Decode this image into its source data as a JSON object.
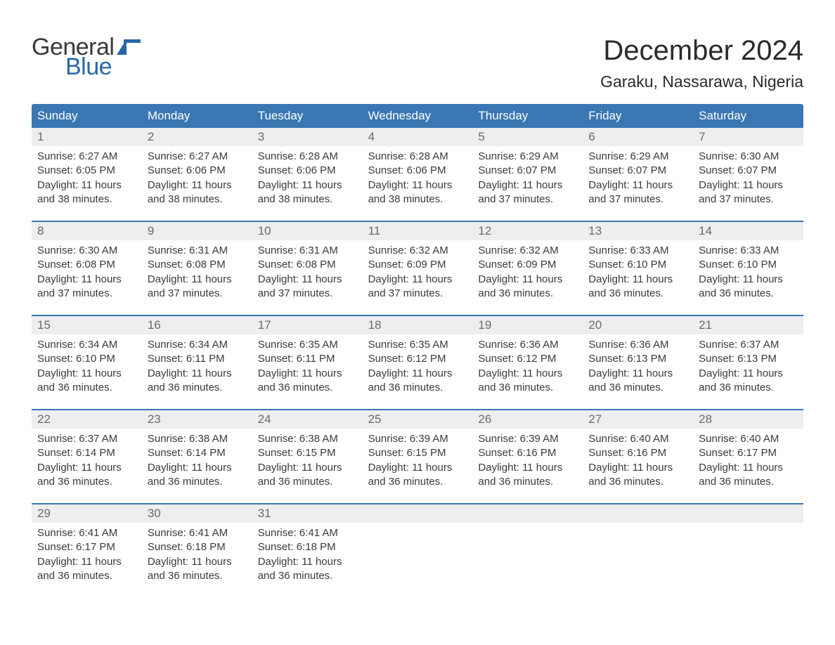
{
  "logo": {
    "text1": "General",
    "text2": "Blue",
    "flag_color": "#2968a8"
  },
  "title": "December 2024",
  "location": "Garaku, Nassarawa, Nigeria",
  "header_bg": "#3a77b3",
  "header_fg": "#ffffff",
  "daynum_bg": "#eceeef",
  "daynum_fg": "#6a6a6a",
  "text_color": "#3a3a3a",
  "border_color": "#3a77b3",
  "days": [
    "Sunday",
    "Monday",
    "Tuesday",
    "Wednesday",
    "Thursday",
    "Friday",
    "Saturday"
  ],
  "weeks": [
    [
      {
        "n": "1",
        "sunrise": "6:27 AM",
        "sunset": "6:05 PM",
        "daylight": "11 hours and 38 minutes."
      },
      {
        "n": "2",
        "sunrise": "6:27 AM",
        "sunset": "6:06 PM",
        "daylight": "11 hours and 38 minutes."
      },
      {
        "n": "3",
        "sunrise": "6:28 AM",
        "sunset": "6:06 PM",
        "daylight": "11 hours and 38 minutes."
      },
      {
        "n": "4",
        "sunrise": "6:28 AM",
        "sunset": "6:06 PM",
        "daylight": "11 hours and 38 minutes."
      },
      {
        "n": "5",
        "sunrise": "6:29 AM",
        "sunset": "6:07 PM",
        "daylight": "11 hours and 37 minutes."
      },
      {
        "n": "6",
        "sunrise": "6:29 AM",
        "sunset": "6:07 PM",
        "daylight": "11 hours and 37 minutes."
      },
      {
        "n": "7",
        "sunrise": "6:30 AM",
        "sunset": "6:07 PM",
        "daylight": "11 hours and 37 minutes."
      }
    ],
    [
      {
        "n": "8",
        "sunrise": "6:30 AM",
        "sunset": "6:08 PM",
        "daylight": "11 hours and 37 minutes."
      },
      {
        "n": "9",
        "sunrise": "6:31 AM",
        "sunset": "6:08 PM",
        "daylight": "11 hours and 37 minutes."
      },
      {
        "n": "10",
        "sunrise": "6:31 AM",
        "sunset": "6:08 PM",
        "daylight": "11 hours and 37 minutes."
      },
      {
        "n": "11",
        "sunrise": "6:32 AM",
        "sunset": "6:09 PM",
        "daylight": "11 hours and 37 minutes."
      },
      {
        "n": "12",
        "sunrise": "6:32 AM",
        "sunset": "6:09 PM",
        "daylight": "11 hours and 36 minutes."
      },
      {
        "n": "13",
        "sunrise": "6:33 AM",
        "sunset": "6:10 PM",
        "daylight": "11 hours and 36 minutes."
      },
      {
        "n": "14",
        "sunrise": "6:33 AM",
        "sunset": "6:10 PM",
        "daylight": "11 hours and 36 minutes."
      }
    ],
    [
      {
        "n": "15",
        "sunrise": "6:34 AM",
        "sunset": "6:10 PM",
        "daylight": "11 hours and 36 minutes."
      },
      {
        "n": "16",
        "sunrise": "6:34 AM",
        "sunset": "6:11 PM",
        "daylight": "11 hours and 36 minutes."
      },
      {
        "n": "17",
        "sunrise": "6:35 AM",
        "sunset": "6:11 PM",
        "daylight": "11 hours and 36 minutes."
      },
      {
        "n": "18",
        "sunrise": "6:35 AM",
        "sunset": "6:12 PM",
        "daylight": "11 hours and 36 minutes."
      },
      {
        "n": "19",
        "sunrise": "6:36 AM",
        "sunset": "6:12 PM",
        "daylight": "11 hours and 36 minutes."
      },
      {
        "n": "20",
        "sunrise": "6:36 AM",
        "sunset": "6:13 PM",
        "daylight": "11 hours and 36 minutes."
      },
      {
        "n": "21",
        "sunrise": "6:37 AM",
        "sunset": "6:13 PM",
        "daylight": "11 hours and 36 minutes."
      }
    ],
    [
      {
        "n": "22",
        "sunrise": "6:37 AM",
        "sunset": "6:14 PM",
        "daylight": "11 hours and 36 minutes."
      },
      {
        "n": "23",
        "sunrise": "6:38 AM",
        "sunset": "6:14 PM",
        "daylight": "11 hours and 36 minutes."
      },
      {
        "n": "24",
        "sunrise": "6:38 AM",
        "sunset": "6:15 PM",
        "daylight": "11 hours and 36 minutes."
      },
      {
        "n": "25",
        "sunrise": "6:39 AM",
        "sunset": "6:15 PM",
        "daylight": "11 hours and 36 minutes."
      },
      {
        "n": "26",
        "sunrise": "6:39 AM",
        "sunset": "6:16 PM",
        "daylight": "11 hours and 36 minutes."
      },
      {
        "n": "27",
        "sunrise": "6:40 AM",
        "sunset": "6:16 PM",
        "daylight": "11 hours and 36 minutes."
      },
      {
        "n": "28",
        "sunrise": "6:40 AM",
        "sunset": "6:17 PM",
        "daylight": "11 hours and 36 minutes."
      }
    ],
    [
      {
        "n": "29",
        "sunrise": "6:41 AM",
        "sunset": "6:17 PM",
        "daylight": "11 hours and 36 minutes."
      },
      {
        "n": "30",
        "sunrise": "6:41 AM",
        "sunset": "6:18 PM",
        "daylight": "11 hours and 36 minutes."
      },
      {
        "n": "31",
        "sunrise": "6:41 AM",
        "sunset": "6:18 PM",
        "daylight": "11 hours and 36 minutes."
      },
      null,
      null,
      null,
      null
    ]
  ],
  "labels": {
    "sunrise": "Sunrise:",
    "sunset": "Sunset:",
    "daylight": "Daylight:"
  }
}
